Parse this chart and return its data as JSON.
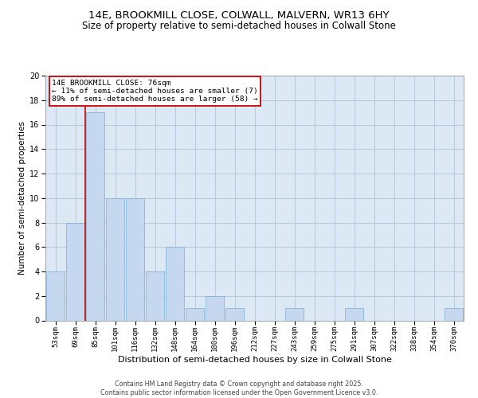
{
  "title_line1": "14E, BROOKMILL CLOSE, COLWALL, MALVERN, WR13 6HY",
  "title_line2": "Size of property relative to semi-detached houses in Colwall Stone",
  "xlabel": "Distribution of semi-detached houses by size in Colwall Stone",
  "ylabel": "Number of semi-detached properties",
  "categories": [
    "53sqm",
    "69sqm",
    "85sqm",
    "101sqm",
    "116sqm",
    "132sqm",
    "148sqm",
    "164sqm",
    "180sqm",
    "196sqm",
    "212sqm",
    "227sqm",
    "243sqm",
    "259sqm",
    "275sqm",
    "291sqm",
    "307sqm",
    "322sqm",
    "338sqm",
    "354sqm",
    "370sqm"
  ],
  "values": [
    4,
    8,
    17,
    10,
    10,
    4,
    6,
    1,
    2,
    1,
    0,
    0,
    1,
    0,
    0,
    1,
    0,
    0,
    0,
    0,
    1
  ],
  "bar_color": "#c5d8f0",
  "bar_edgecolor": "#7aadd4",
  "red_line_x": 1.5,
  "red_line_color": "#cc0000",
  "annotation_box_text": "14E BROOKMILL CLOSE: 76sqm\n← 11% of semi-detached houses are smaller (7)\n89% of semi-detached houses are larger (58) →",
  "annotation_box_color": "#cc0000",
  "annotation_box_facecolor": "#ffffff",
  "ylim": [
    0,
    20
  ],
  "yticks": [
    0,
    2,
    4,
    6,
    8,
    10,
    12,
    14,
    16,
    18,
    20
  ],
  "grid_color": "#b8c8dc",
  "background_color": "#dce8f4",
  "footer_text": "Contains HM Land Registry data © Crown copyright and database right 2025.\nContains public sector information licensed under the Open Government Licence v3.0.",
  "title_fontsize": 9.5,
  "subtitle_fontsize": 8.5,
  "tick_fontsize": 6.5,
  "ylabel_fontsize": 7.5,
  "xlabel_fontsize": 8,
  "annotation_fontsize": 6.8,
  "footer_fontsize": 5.8
}
